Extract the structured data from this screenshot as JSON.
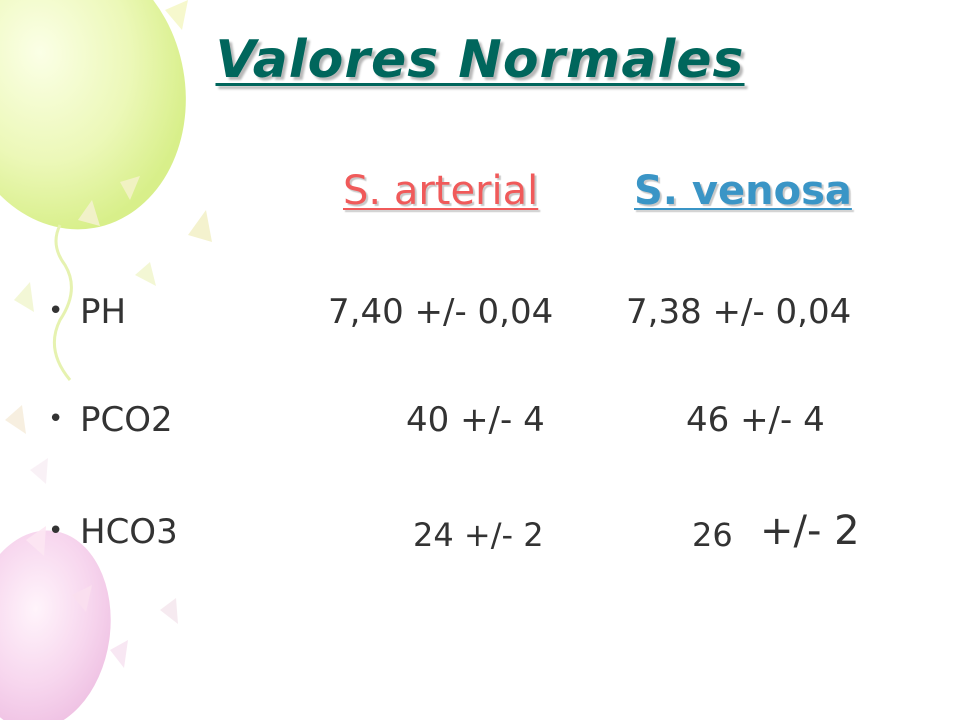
{
  "slide": {
    "title": "Valores Normales",
    "headers": {
      "arterial": "S. arterial",
      "venosa": "S. venosa"
    },
    "bullet_glyph": "•",
    "rows": [
      {
        "label": "PH",
        "arterial": "7,40 +/- 0,04",
        "venosa": "7,38 +/- 0,04"
      },
      {
        "label": "PCO2",
        "arterial": "40 +/- 4",
        "venosa": "46 +/- 4"
      },
      {
        "label": "HCO3",
        "arterial": "24 +/- 2",
        "venosa_number": "26",
        "venosa_rest": "+/- 2"
      }
    ]
  },
  "colors": {
    "title": "#00665c",
    "arterial": "#f05a5a",
    "venosa": "#3a95c6",
    "body_text": "#333333"
  },
  "decoration": {
    "balloons": [
      "green-balloon-icon",
      "pink-balloon-icon"
    ]
  }
}
